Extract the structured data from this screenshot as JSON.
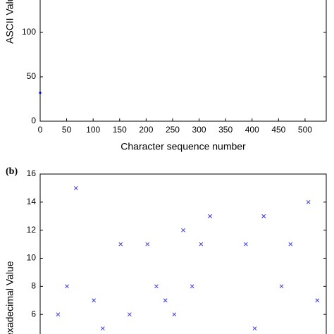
{
  "chart_data": [
    {
      "type": "scatter",
      "marker": "dot",
      "ylabel": "ASCII Value",
      "xlabel": "Character sequence number",
      "x": [
        0
      ],
      "values": [
        32
      ],
      "color": "#0000cc",
      "xlim": [
        0,
        540
      ],
      "xticks": [
        0,
        50,
        100,
        150,
        200,
        250,
        300,
        350,
        400,
        450,
        500
      ],
      "ylim": [
        0,
        150
      ],
      "yticks": [
        0,
        50,
        100
      ]
    },
    {
      "type": "scatter",
      "marker": "x",
      "panel_label": "(b)",
      "ylabel": "Hexadecimal Value",
      "x": [
        2,
        3,
        4,
        6,
        7,
        9,
        10,
        12,
        13,
        14,
        15,
        16,
        17,
        18,
        19,
        23,
        24,
        25,
        27,
        28,
        30,
        31
      ],
      "values": [
        6,
        8,
        15,
        7,
        5,
        11,
        6,
        11,
        8,
        7,
        6,
        12,
        8,
        11,
        13,
        11,
        5,
        13,
        8,
        11,
        14,
        7
      ],
      "color": "#3333ee",
      "xlim": [
        0,
        32
      ],
      "ylim": [
        4,
        16
      ],
      "yticks": [
        6,
        8,
        10,
        12,
        14,
        16
      ]
    }
  ]
}
